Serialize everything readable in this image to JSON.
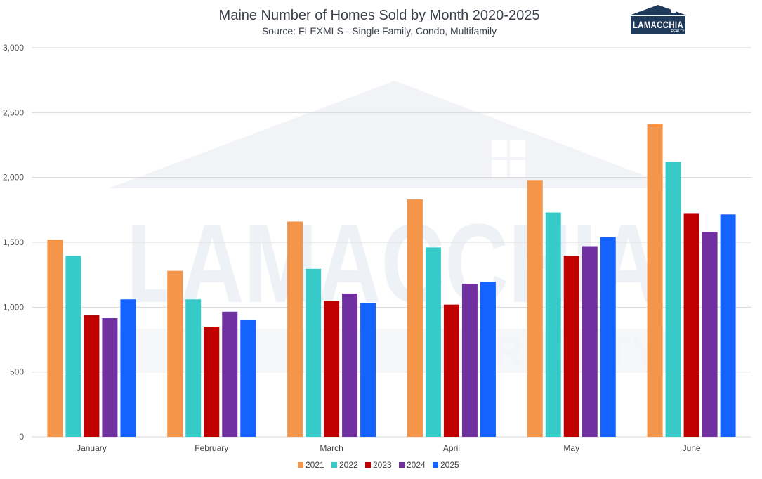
{
  "chart_data": {
    "type": "bar",
    "title": "Maine Number of Homes Sold by Month 2020-2025",
    "subtitle": "Source: FLEXMLS - Single Family, Condo, Multifamily",
    "xlabel": "",
    "ylabel": "",
    "categories": [
      "January",
      "February",
      "March",
      "April",
      "May",
      "June"
    ],
    "series": [
      {
        "name": "2021",
        "color": "#f4954a",
        "values": [
          1520,
          1280,
          1660,
          1830,
          1980,
          2410
        ]
      },
      {
        "name": "2022",
        "color": "#36cbc8",
        "values": [
          1395,
          1060,
          1295,
          1460,
          1730,
          2120
        ]
      },
      {
        "name": "2023",
        "color": "#c00000",
        "values": [
          940,
          850,
          1050,
          1020,
          1395,
          1725
        ]
      },
      {
        "name": "2024",
        "color": "#7030a0",
        "values": [
          915,
          965,
          1105,
          1180,
          1470,
          1580
        ]
      },
      {
        "name": "2025",
        "color": "#1563ff",
        "values": [
          1060,
          900,
          1030,
          1195,
          1540,
          1715
        ]
      }
    ],
    "ylim": [
      0,
      3000
    ],
    "yticks": [
      0,
      500,
      1000,
      1500,
      2000,
      2500,
      3000
    ],
    "ytick_labels": [
      "0",
      "500",
      "1,000",
      "1,500",
      "2,000",
      "2,500",
      "3,000"
    ],
    "grid": true,
    "legend_position": "bottom"
  },
  "logo": {
    "brand": "LAMACCHIA",
    "sub": "REALTY",
    "watermark_word": "LAMACCHIA",
    "watermark_sub": "REALTY"
  }
}
